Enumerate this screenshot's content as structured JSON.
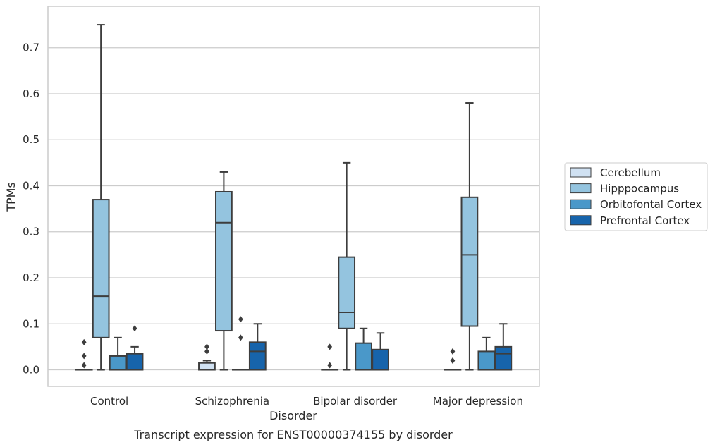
{
  "chart_data": {
    "type": "box",
    "caption": "Transcript expression for ENST00000374155 by disorder",
    "xlabel": "Disorder",
    "ylabel": "TPMs",
    "ylim": [
      -0.036,
      0.79
    ],
    "yticks": [
      0.0,
      0.1,
      0.2,
      0.3,
      0.4,
      0.5,
      0.6,
      0.7
    ],
    "ytick_labels": [
      "0.0",
      "0.1",
      "0.2",
      "0.3",
      "0.4",
      "0.5",
      "0.6",
      "0.7"
    ],
    "grid": "horizontal",
    "legend_position": "right",
    "categories": [
      "Control",
      "Schizophrenia",
      "Bipolar disorder",
      "Major depression"
    ],
    "series": [
      {
        "name": "Cerebellum",
        "color": "#d0e1f2",
        "boxes": [
          {
            "whisker_low": 0,
            "q1": 0,
            "median": 0,
            "q3": 0,
            "whisker_high": 0,
            "outliers": [
              0.01,
              0.03,
              0.06
            ]
          },
          {
            "whisker_low": 0,
            "q1": 0,
            "median": 0,
            "q3": 0.015,
            "whisker_high": 0.02,
            "outliers": [
              0.04,
              0.05
            ]
          },
          {
            "whisker_low": 0,
            "q1": 0,
            "median": 0,
            "q3": 0,
            "whisker_high": 0,
            "outliers": [
              0.01,
              0.05
            ]
          },
          {
            "whisker_low": 0,
            "q1": 0,
            "median": 0,
            "q3": 0,
            "whisker_high": 0,
            "outliers": [
              0.02,
              0.04
            ]
          }
        ]
      },
      {
        "name": "Hipppocampus",
        "color": "#94c4df",
        "boxes": [
          {
            "whisker_low": 0,
            "q1": 0.07,
            "median": 0.16,
            "q3": 0.37,
            "whisker_high": 0.75,
            "outliers": []
          },
          {
            "whisker_low": 0,
            "q1": 0.085,
            "median": 0.32,
            "q3": 0.387,
            "whisker_high": 0.43,
            "outliers": []
          },
          {
            "whisker_low": 0,
            "q1": 0.09,
            "median": 0.125,
            "q3": 0.245,
            "whisker_high": 0.45,
            "outliers": []
          },
          {
            "whisker_low": 0,
            "q1": 0.095,
            "median": 0.25,
            "q3": 0.375,
            "whisker_high": 0.58,
            "outliers": []
          }
        ]
      },
      {
        "name": "Orbitofontal Cortex",
        "color": "#4a98c9",
        "boxes": [
          {
            "whisker_low": 0,
            "q1": 0,
            "median": 0,
            "q3": 0.03,
            "whisker_high": 0.07,
            "outliers": []
          },
          {
            "whisker_low": 0,
            "q1": 0,
            "median": 0,
            "q3": 0,
            "whisker_high": 0,
            "outliers": [
              0.07,
              0.11
            ]
          },
          {
            "whisker_low": 0,
            "q1": 0,
            "median": 0,
            "q3": 0.058,
            "whisker_high": 0.09,
            "outliers": []
          },
          {
            "whisker_low": 0,
            "q1": 0,
            "median": 0,
            "q3": 0.04,
            "whisker_high": 0.07,
            "outliers": []
          }
        ]
      },
      {
        "name": "Prefrontal Cortex",
        "color": "#1764ab",
        "boxes": [
          {
            "whisker_low": 0,
            "q1": 0,
            "median": 0,
            "q3": 0.035,
            "whisker_high": 0.05,
            "outliers": [
              0.09
            ]
          },
          {
            "whisker_low": 0,
            "q1": 0,
            "median": 0.04,
            "q3": 0.06,
            "whisker_high": 0.1,
            "outliers": []
          },
          {
            "whisker_low": 0,
            "q1": 0,
            "median": 0,
            "q3": 0.044,
            "whisker_high": 0.08,
            "outliers": []
          },
          {
            "whisker_low": 0,
            "q1": 0,
            "median": 0.035,
            "q3": 0.05,
            "whisker_high": 0.1,
            "outliers": []
          }
        ]
      }
    ]
  }
}
